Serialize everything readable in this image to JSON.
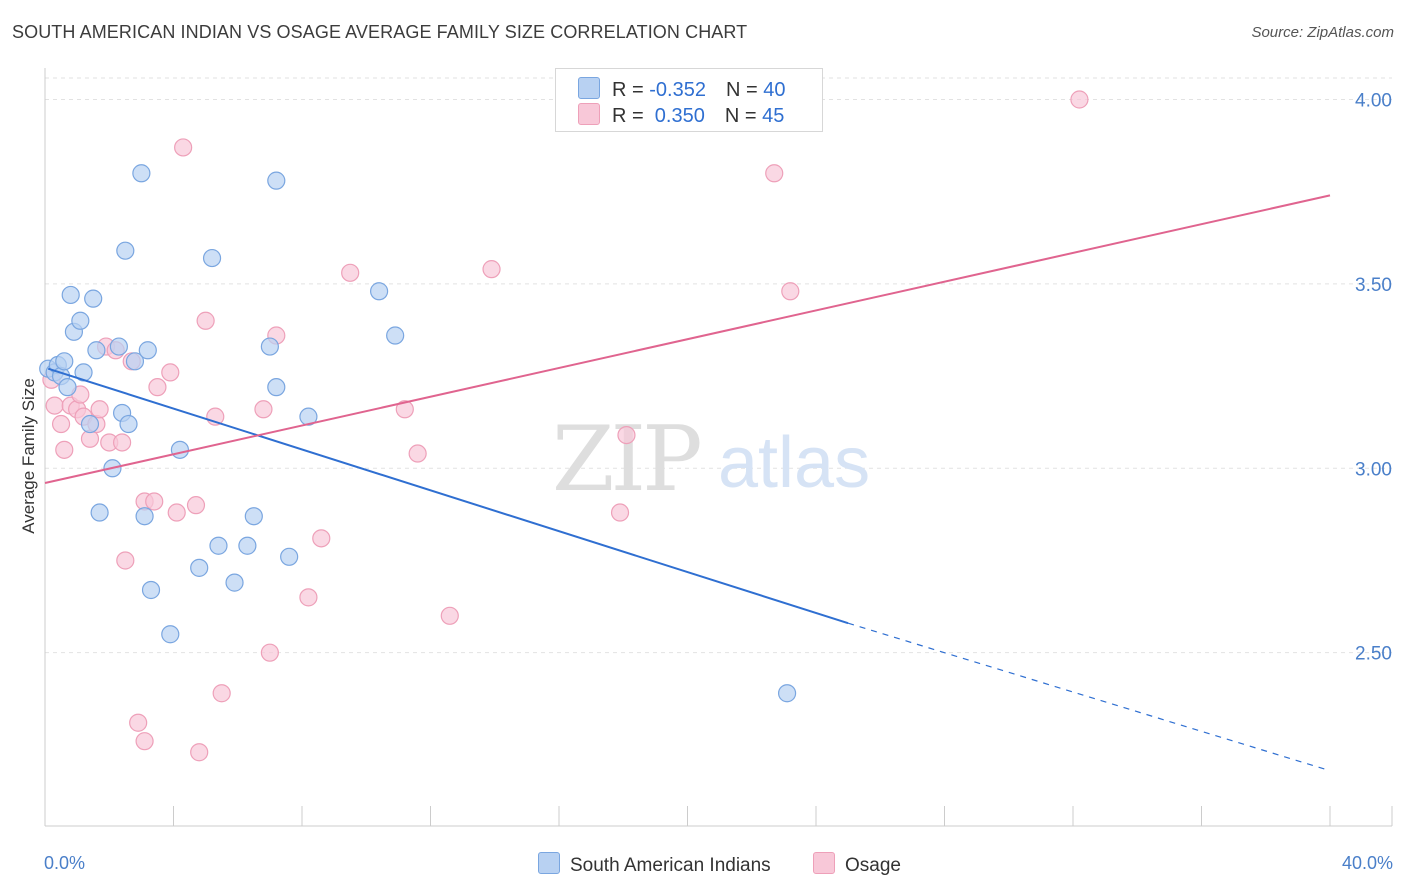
{
  "title": "SOUTH AMERICAN INDIAN VS OSAGE AVERAGE FAMILY SIZE CORRELATION CHART",
  "source": "Source: ZipAtlas.com",
  "watermark": {
    "zip": "ZIP",
    "atlas": "atlas"
  },
  "legend": {
    "rows": [
      {
        "r_label": "R = ",
        "r_value": "-0.352",
        "n_label": "N = ",
        "n_value": "40"
      },
      {
        "r_label": "R = ",
        "r_value": " 0.350",
        "n_label": "N = ",
        "n_value": "45"
      }
    ]
  },
  "colors": {
    "blue_fill": "#b8d1f2",
    "blue_stroke": "#7aa6e0",
    "blue_line": "#2f6fd1",
    "pink_fill": "#f8c8d8",
    "pink_stroke": "#eea0b9",
    "pink_line": "#e0648f",
    "grid": "#e2e2e2",
    "axis_text": "#4a7fc9"
  },
  "chart_data": {
    "type": "scatter",
    "title": "SOUTH AMERICAN INDIAN VS OSAGE AVERAGE FAMILY SIZE CORRELATION CHART",
    "xlabel": "",
    "ylabel": "Average Family Size",
    "xlim": [
      0,
      40
    ],
    "ylim": [
      2.03,
      4.08
    ],
    "x_tick_labels": [
      "0.0%",
      "40.0%"
    ],
    "y_ticks": [
      2.5,
      3.0,
      3.5,
      4.0
    ],
    "y_tick_labels": [
      "2.50",
      "3.00",
      "3.50",
      "4.00"
    ],
    "series": [
      {
        "name": "South American Indians",
        "color": "#b8d1f2",
        "r": -0.352,
        "n": 40,
        "trend": {
          "x0": 0.1,
          "y0": 3.27,
          "x1": 25.0,
          "y1": 2.58,
          "dash_to_x": 40.0,
          "dash_to_y": 2.18
        },
        "points": [
          [
            0.1,
            3.27
          ],
          [
            0.3,
            3.26
          ],
          [
            0.4,
            3.28
          ],
          [
            0.5,
            3.25
          ],
          [
            0.6,
            3.29
          ],
          [
            0.7,
            3.22
          ],
          [
            0.8,
            3.47
          ],
          [
            0.9,
            3.37
          ],
          [
            1.1,
            3.4
          ],
          [
            1.2,
            3.26
          ],
          [
            1.4,
            3.12
          ],
          [
            1.5,
            3.46
          ],
          [
            1.6,
            3.32
          ],
          [
            1.7,
            2.88
          ],
          [
            2.1,
            3.0
          ],
          [
            2.3,
            3.33
          ],
          [
            2.4,
            3.15
          ],
          [
            2.5,
            3.59
          ],
          [
            2.6,
            3.12
          ],
          [
            2.8,
            3.29
          ],
          [
            3.0,
            3.8
          ],
          [
            3.1,
            2.87
          ],
          [
            3.2,
            3.32
          ],
          [
            3.3,
            2.67
          ],
          [
            3.9,
            2.55
          ],
          [
            4.2,
            3.05
          ],
          [
            4.8,
            2.73
          ],
          [
            5.2,
            3.57
          ],
          [
            5.4,
            2.79
          ],
          [
            5.9,
            2.69
          ],
          [
            6.3,
            2.79
          ],
          [
            6.5,
            2.87
          ],
          [
            7.0,
            3.33
          ],
          [
            7.2,
            3.22
          ],
          [
            7.2,
            3.78
          ],
          [
            7.6,
            2.76
          ],
          [
            8.2,
            3.14
          ],
          [
            10.4,
            3.48
          ],
          [
            10.9,
            3.36
          ],
          [
            23.1,
            2.39
          ]
        ]
      },
      {
        "name": "Osage",
        "color": "#f8c8d8",
        "r": 0.35,
        "n": 45,
        "trend": {
          "x0": 0.0,
          "y0": 2.96,
          "x1": 40.0,
          "y1": 3.74
        },
        "points": [
          [
            0.2,
            3.24
          ],
          [
            0.3,
            3.17
          ],
          [
            0.5,
            3.12
          ],
          [
            0.6,
            3.05
          ],
          [
            0.8,
            3.17
          ],
          [
            1.0,
            3.16
          ],
          [
            1.1,
            3.2
          ],
          [
            1.2,
            3.14
          ],
          [
            1.4,
            3.08
          ],
          [
            1.6,
            3.12
          ],
          [
            1.7,
            3.16
          ],
          [
            1.9,
            3.33
          ],
          [
            2.0,
            3.07
          ],
          [
            2.2,
            3.32
          ],
          [
            2.4,
            3.07
          ],
          [
            2.5,
            2.75
          ],
          [
            2.7,
            3.29
          ],
          [
            2.9,
            2.31
          ],
          [
            3.1,
            2.91
          ],
          [
            3.1,
            2.26
          ],
          [
            3.4,
            2.91
          ],
          [
            3.5,
            3.22
          ],
          [
            3.9,
            3.26
          ],
          [
            4.1,
            2.88
          ],
          [
            4.3,
            3.87
          ],
          [
            4.7,
            2.9
          ],
          [
            4.8,
            2.23
          ],
          [
            5.0,
            3.4
          ],
          [
            5.3,
            3.14
          ],
          [
            5.5,
            2.39
          ],
          [
            6.8,
            3.16
          ],
          [
            7.0,
            2.5
          ],
          [
            7.2,
            3.36
          ],
          [
            8.2,
            2.65
          ],
          [
            8.6,
            2.81
          ],
          [
            9.5,
            3.53
          ],
          [
            11.2,
            3.16
          ],
          [
            11.6,
            3.04
          ],
          [
            12.6,
            2.6
          ],
          [
            13.9,
            3.54
          ],
          [
            17.9,
            2.88
          ],
          [
            18.1,
            3.09
          ],
          [
            22.7,
            3.8
          ],
          [
            23.2,
            3.48
          ],
          [
            32.2,
            4.0
          ]
        ]
      }
    ]
  }
}
